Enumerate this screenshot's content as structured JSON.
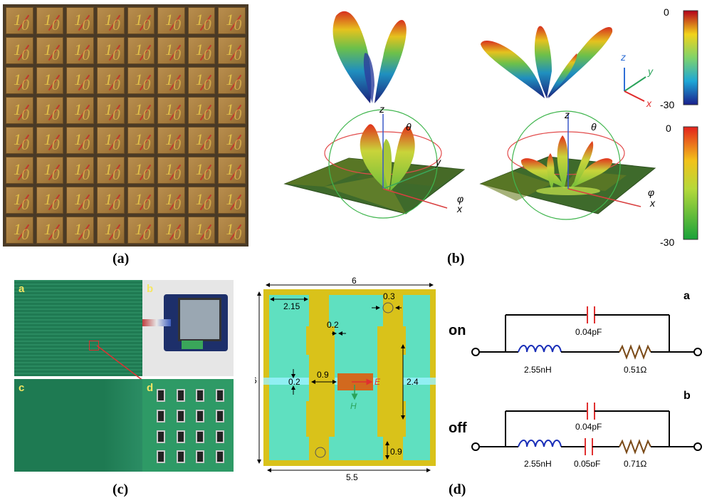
{
  "panels": {
    "a": {
      "label": "(a)",
      "cell_glyph_1": "1",
      "cell_glyph_0": "0"
    },
    "b": {
      "label": "(b)",
      "colorbar_top": {
        "max": "0",
        "min": "-30"
      },
      "colorbar_bottom": {
        "max": "0",
        "min": "-30"
      },
      "axes_labels": {
        "z": "z",
        "y": "y",
        "x": "x",
        "theta": "θ",
        "phi": "φ"
      }
    },
    "c": {
      "label": "(c)",
      "sub": {
        "a": "a",
        "b": "b",
        "c": "c",
        "d": "d"
      }
    },
    "unit_cell": {
      "top": "6",
      "left": "6",
      "bottom": "5.5",
      "d215": "2.15",
      "d03": "0.3",
      "d02a": "0.2",
      "d02b": "0.2",
      "d09a": "0.9",
      "d24": "2.4",
      "d09b": "0.9",
      "E": "E",
      "H": "H"
    },
    "d": {
      "label": "(d)",
      "on_state": {
        "label": "on",
        "tag": "a",
        "cap": "0.04pF",
        "ind": "2.55nH",
        "res": "0.51Ω"
      },
      "off_state": {
        "label": "off",
        "tag": "b",
        "cap_top": "0.04pF",
        "ind": "2.55nH",
        "cap_series": "0.05pF",
        "res": "0.71Ω"
      }
    }
  },
  "colors": {
    "cell_bg": "#a57b3d",
    "pcb_green": "#1f7a52",
    "unit_bg": "#5fe0c0",
    "patch_yellow": "#d9c21a",
    "feed_orange": "#d2691e"
  }
}
